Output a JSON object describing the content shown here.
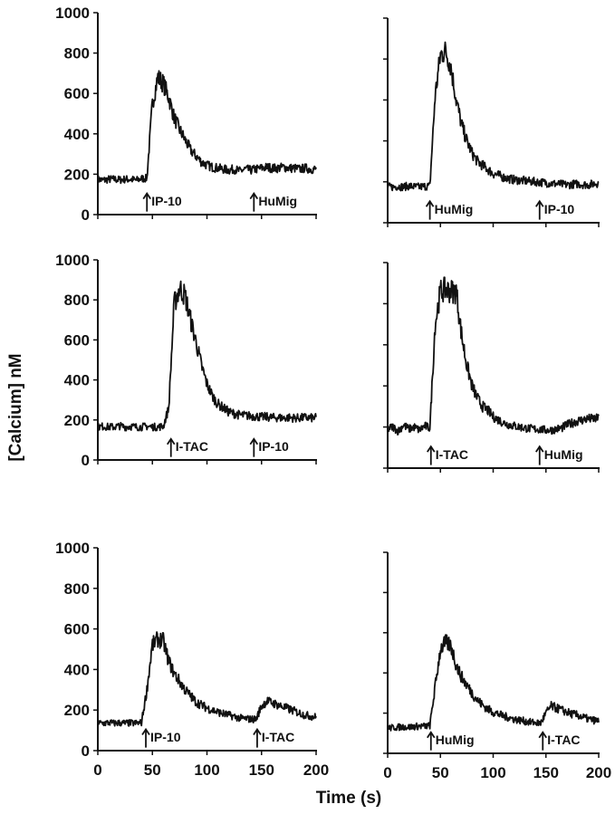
{
  "chart_data": {
    "type": "line",
    "xlabel": "Time (s)",
    "ylabel": "[Calcium] nM",
    "xlim": [
      0,
      200
    ],
    "ylim": [
      0,
      1000
    ],
    "x_ticks": [
      "0",
      "50",
      "100",
      "150",
      "200"
    ],
    "y_ticks": [
      "0",
      "200",
      "400",
      "600",
      "800",
      "1000"
    ],
    "grid": false,
    "time": [
      0,
      5,
      10,
      15,
      20,
      25,
      30,
      35,
      40,
      45,
      50,
      55,
      60,
      65,
      70,
      75,
      80,
      85,
      90,
      95,
      100,
      105,
      110,
      115,
      120,
      125,
      130,
      135,
      140,
      145,
      150,
      155,
      160,
      165,
      170,
      175,
      180,
      185,
      190,
      195,
      200
    ],
    "panels": [
      {
        "name": "IP-10 then HuMig",
        "events": [
          {
            "label": "IP-10",
            "t": 45
          },
          {
            "label": "HuMig",
            "t": 143
          }
        ],
        "values": [
          175,
          170,
          175,
          175,
          172,
          175,
          175,
          170,
          178,
          180,
          550,
          680,
          650,
          580,
          480,
          420,
          370,
          320,
          290,
          260,
          245,
          235,
          230,
          225,
          220,
          225,
          215,
          225,
          220,
          225,
          230,
          235,
          230,
          230,
          235,
          230,
          230,
          225,
          230,
          225,
          225
        ]
      },
      {
        "name": "HuMig then IP-10",
        "events": [
          {
            "label": "HuMig",
            "t": 40
          },
          {
            "label": "IP-10",
            "t": 144
          }
        ],
        "values": [
          175,
          175,
          178,
          175,
          180,
          176,
          175,
          178,
          180,
          620,
          820,
          840,
          760,
          600,
          480,
          400,
          340,
          300,
          280,
          260,
          240,
          232,
          222,
          215,
          210,
          208,
          205,
          202,
          200,
          198,
          195,
          192,
          190,
          188,
          185,
          188,
          190,
          187,
          185,
          190,
          195
        ]
      },
      {
        "name": "I-TAC then IP-10",
        "events": [
          {
            "label": "I-TAC",
            "t": 67
          },
          {
            "label": "IP-10",
            "t": 143
          }
        ],
        "values": [
          165,
          168,
          165,
          165,
          170,
          165,
          168,
          165,
          165,
          168,
          165,
          165,
          168,
          260,
          780,
          860,
          820,
          700,
          590,
          470,
          380,
          320,
          280,
          260,
          240,
          232,
          225,
          222,
          220,
          218,
          215,
          215,
          212,
          212,
          210,
          212,
          210,
          210,
          212,
          210,
          210
        ]
      },
      {
        "name": "I-TAC then HuMig",
        "events": [
          {
            "label": "I-TAC",
            "t": 41
          },
          {
            "label": "HuMig",
            "t": 144
          }
        ],
        "values": [
          190,
          200,
          180,
          210,
          190,
          200,
          185,
          205,
          195,
          700,
          860,
          870,
          860,
          860,
          650,
          500,
          400,
          340,
          300,
          280,
          250,
          235,
          220,
          212,
          205,
          200,
          195,
          192,
          190,
          188,
          185,
          185,
          190,
          195,
          210,
          220,
          230,
          235,
          240,
          240,
          240
        ]
      },
      {
        "name": "IP-10 then I-TAC",
        "events": [
          {
            "label": "IP-10",
            "t": 44
          },
          {
            "label": "I-TAC",
            "t": 146
          }
        ],
        "values": [
          135,
          135,
          138,
          135,
          137,
          135,
          136,
          135,
          138,
          300,
          520,
          550,
          540,
          440,
          380,
          340,
          300,
          270,
          240,
          225,
          210,
          200,
          190,
          182,
          175,
          168,
          160,
          158,
          155,
          155,
          220,
          245,
          235,
          225,
          215,
          205,
          195,
          185,
          175,
          170,
          165
        ]
      },
      {
        "name": "HuMig then I-TAC",
        "events": [
          {
            "label": "HuMig",
            "t": 41
          },
          {
            "label": "I-TAC",
            "t": 147
          }
        ],
        "values": [
          125,
          128,
          130,
          132,
          130,
          133,
          135,
          135,
          138,
          330,
          520,
          550,
          535,
          440,
          380,
          340,
          300,
          265,
          240,
          220,
          205,
          195,
          185,
          178,
          170,
          165,
          160,
          155,
          152,
          150,
          200,
          235,
          225,
          215,
          205,
          195,
          190,
          180,
          170,
          165,
          160
        ]
      }
    ],
    "line_color": "#111111"
  }
}
